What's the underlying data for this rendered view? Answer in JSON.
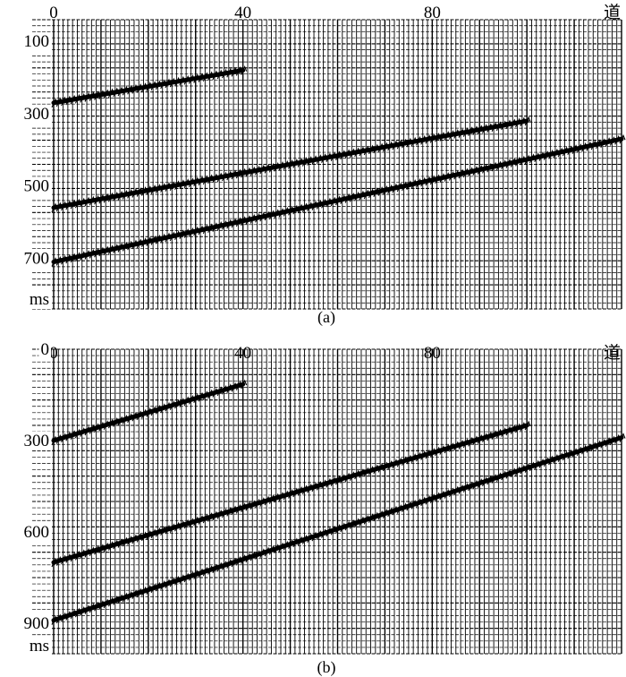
{
  "chart_data": [
    {
      "type": "seismic-wiggle",
      "caption": "(a)",
      "x_label": "道",
      "y_unit": "ms",
      "x_ticks": [
        0,
        40,
        80
      ],
      "y_ticks": [
        100,
        300,
        500,
        700
      ],
      "xlim": [
        0,
        120
      ],
      "ylim": [
        40,
        840
      ],
      "traces": 120,
      "events": [
        {
          "x_start": 0,
          "y_start": 270,
          "x_end": 40,
          "y_end": 180
        },
        {
          "x_start": 0,
          "y_start": 560,
          "x_end": 100,
          "y_end": 320
        },
        {
          "x_start": 0,
          "y_start": 710,
          "x_end": 120,
          "y_end": 370
        }
      ]
    },
    {
      "type": "seismic-wiggle",
      "caption": "(b)",
      "x_label": "道",
      "y_unit": "ms",
      "x_ticks": [
        0,
        40,
        80
      ],
      "y_ticks": [
        0,
        300,
        600,
        900
      ],
      "xlim": [
        0,
        120
      ],
      "ylim": [
        0,
        1000
      ],
      "traces": 120,
      "events": [
        {
          "x_start": 0,
          "y_start": 300,
          "x_end": 40,
          "y_end": 115
        },
        {
          "x_start": 0,
          "y_start": 700,
          "x_end": 100,
          "y_end": 250
        },
        {
          "x_start": 0,
          "y_start": 890,
          "x_end": 120,
          "y_end": 290
        }
      ]
    }
  ]
}
